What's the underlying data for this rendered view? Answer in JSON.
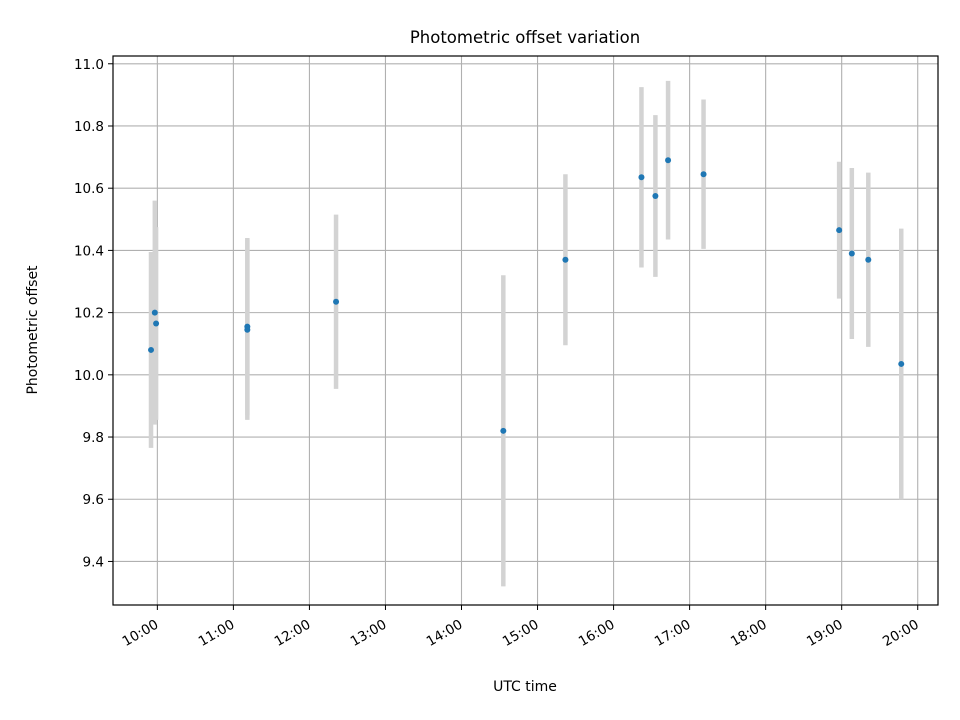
{
  "chart_data": {
    "type": "scatter",
    "title": "Photometric offset variation",
    "xlabel": "UTC time",
    "ylabel": "Photometric offset",
    "x_ticks": [
      "10:00",
      "11:00",
      "12:00",
      "13:00",
      "14:00",
      "15:00",
      "16:00",
      "17:00",
      "18:00",
      "19:00",
      "20:00"
    ],
    "xlim": [
      "09:25",
      "20:16"
    ],
    "y_ticks": [
      "9.4",
      "9.6",
      "9.8",
      "10.0",
      "10.2",
      "10.4",
      "10.6",
      "10.8",
      "11.0"
    ],
    "ylim": [
      9.26,
      11.025
    ],
    "grid": true,
    "marker_color": "#1f77b4",
    "errorbar_color": "#d3d3d3",
    "series": [
      {
        "points": [
          {
            "x": "09:55",
            "y": 10.08,
            "yerr": 0.315
          },
          {
            "x": "09:58",
            "y": 10.2,
            "yerr": 0.36
          },
          {
            "x": "09:59",
            "y": 10.165,
            "yerr": 0.31
          },
          {
            "x": "11:11",
            "y": 10.155,
            "yerr": 0.285
          },
          {
            "x": "11:11",
            "y": 10.145,
            "yerr": 0.29
          },
          {
            "x": "12:21",
            "y": 10.235,
            "yerr": 0.28
          },
          {
            "x": "14:33",
            "y": 9.82,
            "yerr": 0.5
          },
          {
            "x": "15:22",
            "y": 10.37,
            "yerr": 0.275
          },
          {
            "x": "16:22",
            "y": 10.635,
            "yerr": 0.29
          },
          {
            "x": "16:33",
            "y": 10.575,
            "yerr": 0.26
          },
          {
            "x": "16:43",
            "y": 10.69,
            "yerr": 0.255
          },
          {
            "x": "17:11",
            "y": 10.645,
            "yerr": 0.24
          },
          {
            "x": "18:58",
            "y": 10.465,
            "yerr": 0.22
          },
          {
            "x": "19:08",
            "y": 10.39,
            "yerr": 0.275
          },
          {
            "x": "19:21",
            "y": 10.37,
            "yerr": 0.28
          },
          {
            "x": "19:47",
            "y": 10.035,
            "yerr": 0.435
          }
        ]
      }
    ]
  }
}
